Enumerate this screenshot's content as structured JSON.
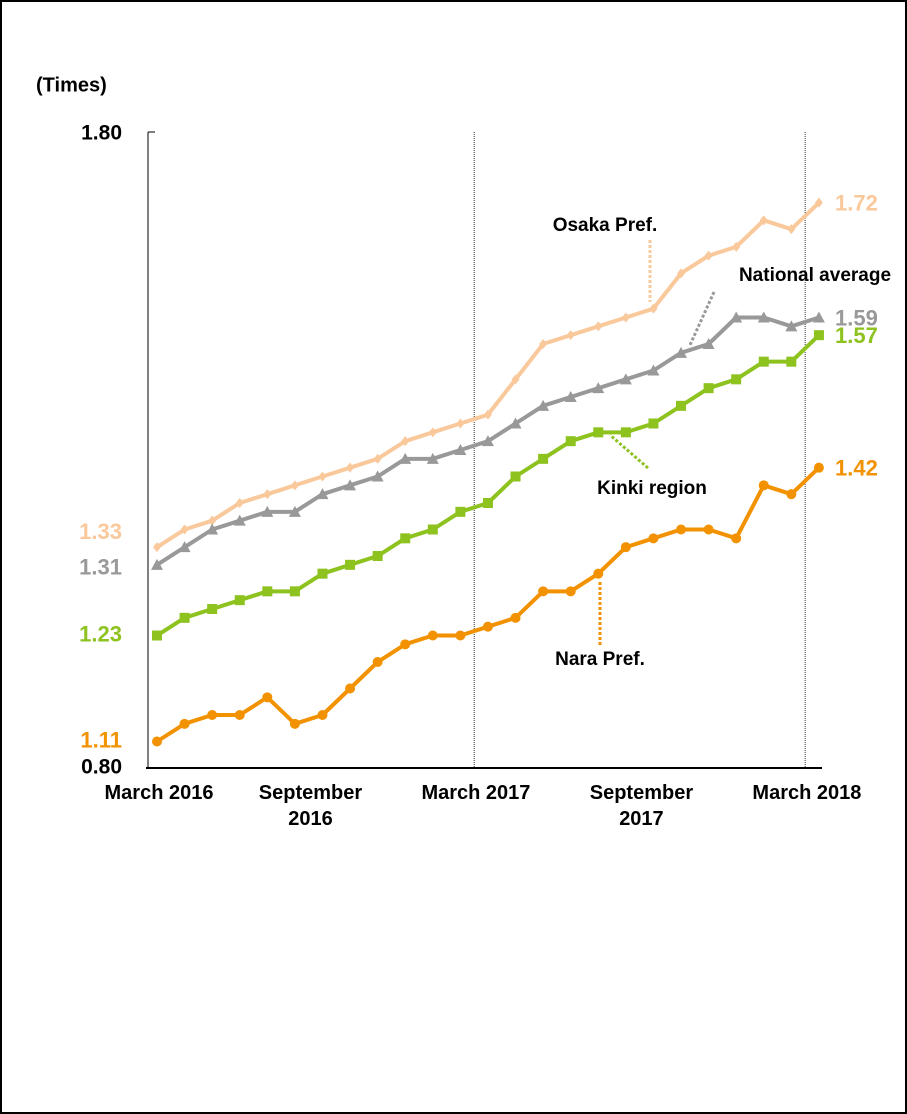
{
  "chart_data": {
    "type": "line",
    "y_axis_label": "(Times)",
    "categories": [
      "March 2016",
      null,
      null,
      null,
      null,
      null,
      "September 2016",
      null,
      null,
      null,
      null,
      null,
      "March 2017",
      null,
      null,
      null,
      null,
      null,
      "September 2017",
      null,
      null,
      null,
      null,
      null,
      "March 2018"
    ],
    "ylim": [
      1.08,
      1.8
    ],
    "yticks": [
      {
        "value": 1.8,
        "label": "1.80"
      }
    ],
    "y_axis_bottom_label": "0.80",
    "series": [
      {
        "name": "Osaka Pref.",
        "color": "#f9c89b",
        "marker": "diamond",
        "values": [
          1.33,
          1.35,
          1.36,
          1.38,
          1.39,
          1.4,
          1.41,
          1.42,
          1.43,
          1.45,
          1.46,
          1.47,
          1.48,
          1.52,
          1.56,
          1.57,
          1.58,
          1.59,
          1.6,
          1.64,
          1.66,
          1.67,
          1.7,
          1.69,
          1.72
        ]
      },
      {
        "name": "National average",
        "color": "#999999",
        "marker": "triangle",
        "values": [
          1.31,
          1.33,
          1.35,
          1.36,
          1.37,
          1.37,
          1.39,
          1.4,
          1.41,
          1.43,
          1.43,
          1.44,
          1.45,
          1.47,
          1.49,
          1.5,
          1.51,
          1.52,
          1.53,
          1.55,
          1.56,
          1.59,
          1.59,
          1.58,
          1.59
        ]
      },
      {
        "name": "Kinki region",
        "color": "#8dc21f",
        "marker": "square",
        "values": [
          1.23,
          1.25,
          1.26,
          1.27,
          1.28,
          1.28,
          1.3,
          1.31,
          1.32,
          1.34,
          1.35,
          1.37,
          1.38,
          1.41,
          1.43,
          1.45,
          1.46,
          1.46,
          1.47,
          1.49,
          1.51,
          1.52,
          1.54,
          1.54,
          1.57
        ]
      },
      {
        "name": "Nara Pref.",
        "color": "#f39200",
        "marker": "circle",
        "values": [
          1.11,
          1.13,
          1.14,
          1.14,
          1.16,
          1.13,
          1.14,
          1.17,
          1.2,
          1.22,
          1.23,
          1.23,
          1.24,
          1.25,
          1.28,
          1.28,
          1.3,
          1.33,
          1.34,
          1.35,
          1.35,
          1.34,
          1.4,
          1.39,
          1.42
        ]
      }
    ]
  }
}
